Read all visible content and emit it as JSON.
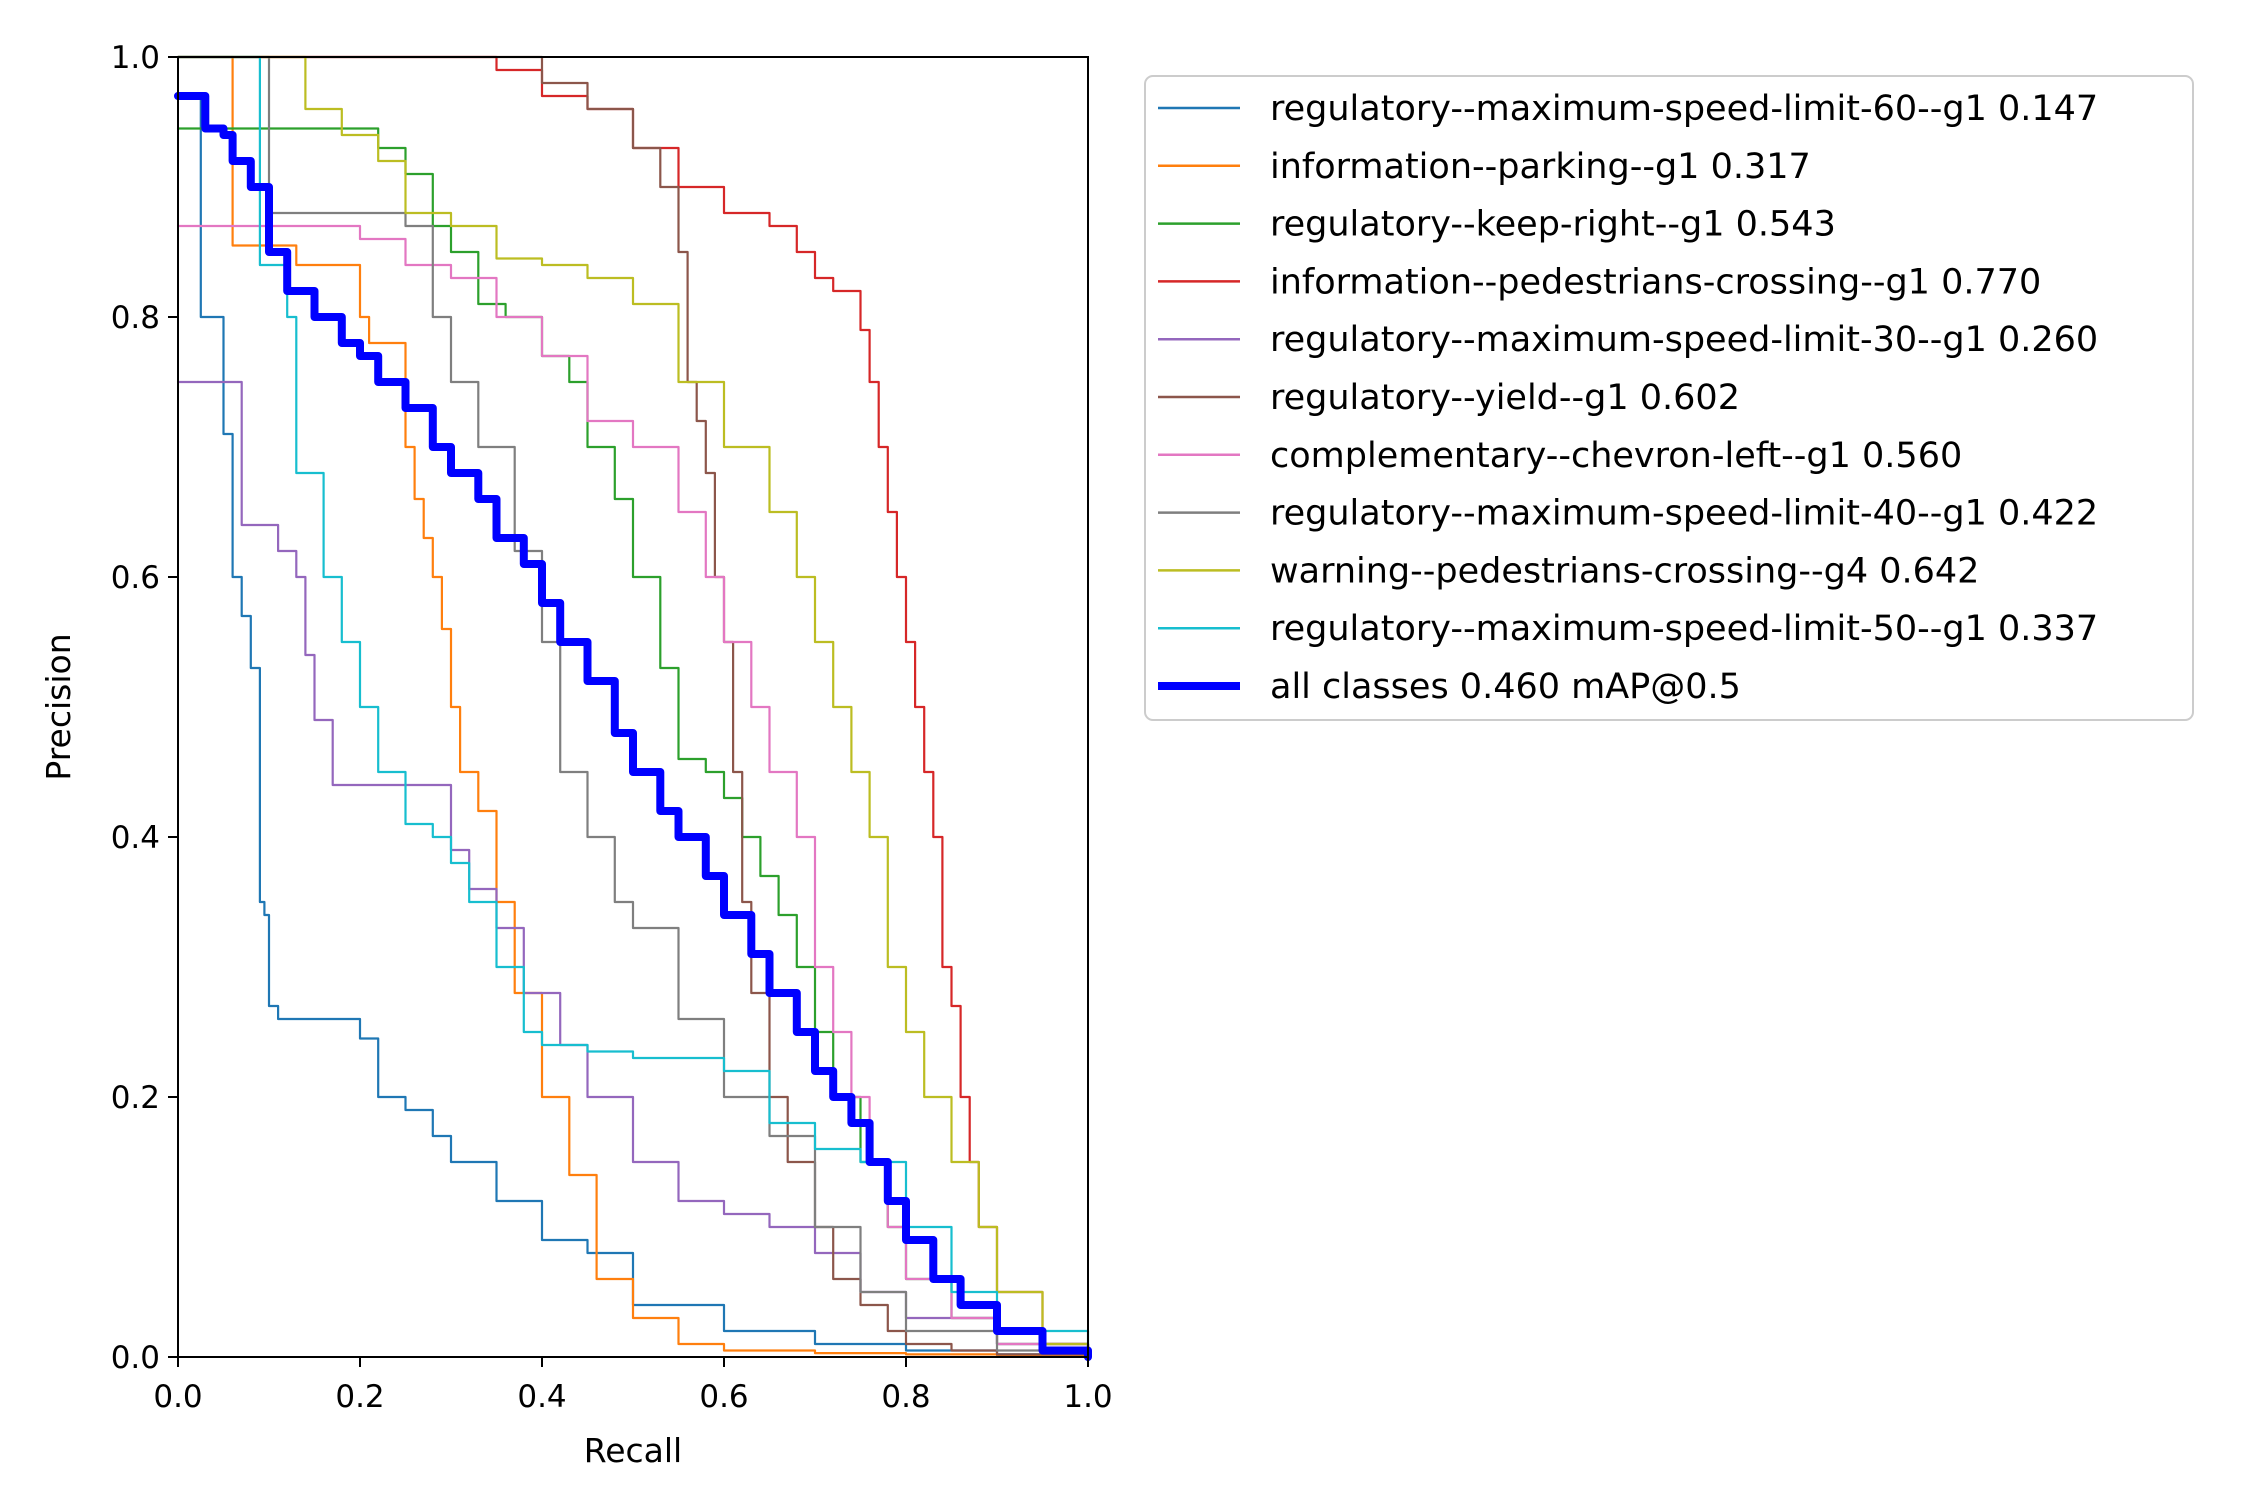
{
  "chart_data": {
    "type": "line",
    "xlabel": "Recall",
    "ylabel": "Precision",
    "xlim": [
      0,
      1
    ],
    "ylim": [
      0,
      1
    ],
    "xticks": [
      "0.0",
      "0.2",
      "0.4",
      "0.6",
      "0.8",
      "1.0"
    ],
    "yticks": [
      "0.0",
      "0.2",
      "0.4",
      "0.6",
      "0.8",
      "1.0"
    ],
    "grid": false,
    "legend_position": "outside-right",
    "series": [
      {
        "name": "regulatory--maximum-speed-limit-60--g1 0.147",
        "color": "#1f77b4",
        "width": "thin",
        "x": [
          0,
          0.02,
          0.025,
          0.045,
          0.05,
          0.06,
          0.07,
          0.08,
          0.09,
          0.095,
          0.1,
          0.11,
          0.12,
          0.15,
          0.2,
          0.22,
          0.25,
          0.28,
          0.3,
          0.35,
          0.4,
          0.45,
          0.5,
          0.6,
          0.7,
          0.8,
          0.9,
          1.0
        ],
        "y": [
          0.97,
          0.97,
          0.8,
          0.8,
          0.71,
          0.6,
          0.57,
          0.53,
          0.35,
          0.34,
          0.27,
          0.26,
          0.26,
          0.26,
          0.245,
          0.2,
          0.19,
          0.17,
          0.15,
          0.12,
          0.09,
          0.08,
          0.04,
          0.02,
          0.01,
          0.005,
          0.002,
          0.0
        ]
      },
      {
        "name": "information--parking--g1 0.317",
        "color": "#ff7f0e",
        "width": "thin",
        "x": [
          0,
          0.05,
          0.06,
          0.1,
          0.13,
          0.2,
          0.21,
          0.25,
          0.26,
          0.27,
          0.28,
          0.29,
          0.3,
          0.31,
          0.33,
          0.35,
          0.37,
          0.4,
          0.43,
          0.46,
          0.5,
          0.55,
          0.6,
          0.7,
          0.8,
          0.9,
          1.0
        ],
        "y": [
          1.0,
          1.0,
          0.855,
          0.855,
          0.84,
          0.8,
          0.78,
          0.7,
          0.66,
          0.63,
          0.6,
          0.56,
          0.5,
          0.45,
          0.42,
          0.35,
          0.28,
          0.2,
          0.14,
          0.06,
          0.03,
          0.01,
          0.005,
          0.003,
          0.002,
          0.001,
          0.0
        ]
      },
      {
        "name": "regulatory--keep-right--g1 0.543",
        "color": "#2ca02c",
        "width": "thin",
        "x": [
          0,
          0.1,
          0.18,
          0.22,
          0.25,
          0.28,
          0.3,
          0.33,
          0.36,
          0.4,
          0.43,
          0.45,
          0.48,
          0.5,
          0.53,
          0.55,
          0.58,
          0.6,
          0.62,
          0.64,
          0.66,
          0.68,
          0.7,
          0.72,
          0.75,
          0.78,
          0.8,
          0.85,
          0.9,
          1.0
        ],
        "y": [
          0.945,
          0.945,
          0.945,
          0.93,
          0.91,
          0.87,
          0.85,
          0.81,
          0.8,
          0.77,
          0.75,
          0.7,
          0.66,
          0.6,
          0.53,
          0.46,
          0.45,
          0.43,
          0.4,
          0.37,
          0.34,
          0.3,
          0.25,
          0.2,
          0.15,
          0.1,
          0.06,
          0.03,
          0.01,
          0.0
        ]
      },
      {
        "name": "information--pedestrians-crossing--g1 0.770",
        "color": "#d62728",
        "width": "thin",
        "x": [
          0,
          0.3,
          0.35,
          0.4,
          0.45,
          0.5,
          0.55,
          0.6,
          0.65,
          0.68,
          0.7,
          0.72,
          0.75,
          0.76,
          0.77,
          0.78,
          0.79,
          0.8,
          0.81,
          0.82,
          0.83,
          0.84,
          0.85,
          0.86,
          0.87,
          0.88,
          0.9,
          0.95,
          1.0
        ],
        "y": [
          1.0,
          1.0,
          0.99,
          0.97,
          0.96,
          0.93,
          0.9,
          0.88,
          0.87,
          0.85,
          0.83,
          0.82,
          0.79,
          0.75,
          0.7,
          0.65,
          0.6,
          0.55,
          0.5,
          0.45,
          0.4,
          0.3,
          0.27,
          0.2,
          0.15,
          0.1,
          0.05,
          0.01,
          0.0
        ]
      },
      {
        "name": "regulatory--maximum-speed-limit-30--g1 0.260",
        "color": "#9467bd",
        "width": "thin",
        "x": [
          0,
          0.06,
          0.07,
          0.11,
          0.13,
          0.14,
          0.15,
          0.17,
          0.21,
          0.25,
          0.3,
          0.32,
          0.35,
          0.38,
          0.42,
          0.45,
          0.5,
          0.55,
          0.6,
          0.65,
          0.7,
          0.75,
          0.8,
          0.9,
          1.0
        ],
        "y": [
          0.75,
          0.75,
          0.64,
          0.62,
          0.6,
          0.54,
          0.49,
          0.44,
          0.44,
          0.44,
          0.39,
          0.36,
          0.33,
          0.28,
          0.24,
          0.2,
          0.15,
          0.12,
          0.11,
          0.1,
          0.08,
          0.05,
          0.03,
          0.01,
          0.0
        ]
      },
      {
        "name": "regulatory--yield--g1 0.602",
        "color": "#8c564b",
        "width": "thin",
        "x": [
          0,
          0.35,
          0.4,
          0.45,
          0.5,
          0.53,
          0.55,
          0.56,
          0.57,
          0.58,
          0.59,
          0.6,
          0.61,
          0.62,
          0.63,
          0.65,
          0.67,
          0.7,
          0.72,
          0.75,
          0.78,
          0.8,
          0.85,
          0.9,
          1.0
        ],
        "y": [
          1.0,
          1.0,
          0.98,
          0.96,
          0.93,
          0.9,
          0.85,
          0.75,
          0.72,
          0.68,
          0.6,
          0.55,
          0.45,
          0.35,
          0.28,
          0.2,
          0.15,
          0.1,
          0.06,
          0.04,
          0.02,
          0.01,
          0.005,
          0.002,
          0.0
        ]
      },
      {
        "name": "complementary--chevron-left--g1 0.560",
        "color": "#e377c2",
        "width": "thin",
        "x": [
          0,
          0.12,
          0.15,
          0.2,
          0.25,
          0.3,
          0.35,
          0.4,
          0.45,
          0.5,
          0.55,
          0.58,
          0.6,
          0.63,
          0.65,
          0.68,
          0.7,
          0.72,
          0.74,
          0.76,
          0.78,
          0.8,
          0.85,
          0.9,
          1.0
        ],
        "y": [
          0.87,
          0.87,
          0.87,
          0.86,
          0.84,
          0.83,
          0.8,
          0.77,
          0.72,
          0.7,
          0.65,
          0.6,
          0.55,
          0.5,
          0.45,
          0.4,
          0.3,
          0.25,
          0.2,
          0.15,
          0.1,
          0.06,
          0.03,
          0.01,
          0.0
        ]
      },
      {
        "name": "regulatory--maximum-speed-limit-40--g1 0.422",
        "color": "#7f7f7f",
        "width": "thin",
        "x": [
          0,
          0.08,
          0.1,
          0.25,
          0.28,
          0.3,
          0.33,
          0.37,
          0.4,
          0.42,
          0.45,
          0.48,
          0.5,
          0.55,
          0.6,
          0.65,
          0.7,
          0.75,
          0.8,
          0.9,
          1.0
        ],
        "y": [
          1.0,
          1.0,
          0.88,
          0.87,
          0.8,
          0.75,
          0.7,
          0.62,
          0.55,
          0.45,
          0.4,
          0.35,
          0.33,
          0.26,
          0.2,
          0.17,
          0.1,
          0.05,
          0.02,
          0.005,
          0.0
        ]
      },
      {
        "name": "warning--pedestrians-crossing--g4 0.642",
        "color": "#bcbd22",
        "width": "thin",
        "x": [
          0,
          0.09,
          0.14,
          0.18,
          0.22,
          0.25,
          0.3,
          0.35,
          0.4,
          0.45,
          0.5,
          0.55,
          0.6,
          0.65,
          0.68,
          0.7,
          0.72,
          0.74,
          0.76,
          0.78,
          0.8,
          0.82,
          0.85,
          0.88,
          0.9,
          0.95,
          1.0
        ],
        "y": [
          1.0,
          1.0,
          0.96,
          0.94,
          0.92,
          0.88,
          0.87,
          0.845,
          0.84,
          0.83,
          0.81,
          0.75,
          0.7,
          0.65,
          0.6,
          0.55,
          0.5,
          0.45,
          0.4,
          0.3,
          0.25,
          0.2,
          0.15,
          0.1,
          0.05,
          0.01,
          0.0
        ]
      },
      {
        "name": "regulatory--maximum-speed-limit-50--g1 0.337",
        "color": "#17becf",
        "width": "thin",
        "x": [
          0,
          0.08,
          0.09,
          0.12,
          0.13,
          0.16,
          0.18,
          0.2,
          0.22,
          0.25,
          0.28,
          0.3,
          0.32,
          0.35,
          0.38,
          0.4,
          0.45,
          0.5,
          0.55,
          0.6,
          0.65,
          0.7,
          0.75,
          0.8,
          0.85,
          0.9,
          1.0
        ],
        "y": [
          1.0,
          1.0,
          0.84,
          0.8,
          0.68,
          0.6,
          0.55,
          0.5,
          0.45,
          0.41,
          0.4,
          0.38,
          0.35,
          0.3,
          0.25,
          0.24,
          0.235,
          0.23,
          0.23,
          0.22,
          0.18,
          0.16,
          0.15,
          0.1,
          0.05,
          0.02,
          0.0
        ]
      },
      {
        "name": "all classes 0.460 mAP@0.5",
        "color": "#0000ff",
        "width": "thick",
        "x": [
          0,
          0.025,
          0.03,
          0.05,
          0.06,
          0.08,
          0.1,
          0.12,
          0.15,
          0.18,
          0.2,
          0.22,
          0.25,
          0.28,
          0.3,
          0.33,
          0.35,
          0.38,
          0.4,
          0.42,
          0.45,
          0.48,
          0.5,
          0.53,
          0.55,
          0.58,
          0.6,
          0.63,
          0.65,
          0.68,
          0.7,
          0.72,
          0.74,
          0.76,
          0.78,
          0.8,
          0.83,
          0.86,
          0.9,
          0.95,
          1.0
        ],
        "y": [
          0.97,
          0.97,
          0.945,
          0.94,
          0.92,
          0.9,
          0.85,
          0.82,
          0.8,
          0.78,
          0.77,
          0.75,
          0.73,
          0.7,
          0.68,
          0.66,
          0.63,
          0.61,
          0.58,
          0.55,
          0.52,
          0.48,
          0.45,
          0.42,
          0.4,
          0.37,
          0.34,
          0.31,
          0.28,
          0.25,
          0.22,
          0.2,
          0.18,
          0.15,
          0.12,
          0.09,
          0.06,
          0.04,
          0.02,
          0.005,
          0.0
        ]
      }
    ]
  }
}
